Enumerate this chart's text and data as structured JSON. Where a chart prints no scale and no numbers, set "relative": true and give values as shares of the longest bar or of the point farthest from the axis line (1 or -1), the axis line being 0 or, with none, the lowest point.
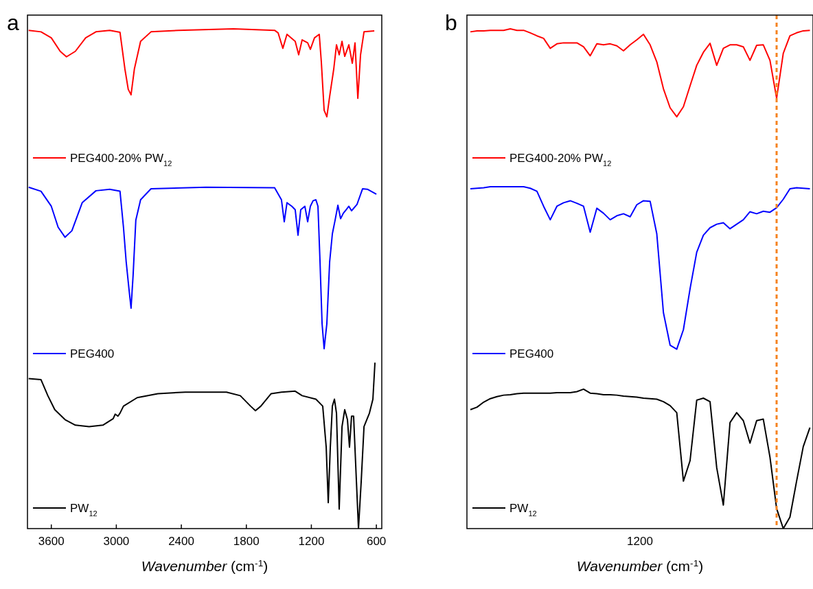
{
  "chart_data": [
    {
      "type": "line",
      "title": "a",
      "xlabel": "Wavenumber (cm$^{-1}$)",
      "relative": true,
      "xlim": [
        3820,
        550
      ],
      "xticks": [
        3600,
        3000,
        2400,
        1800,
        1200,
        600
      ],
      "legend": "left",
      "series": [
        {
          "name": "PEG400-20% PW$_{12}$",
          "color": "#ff0000",
          "x": [
            3809,
            3695,
            3600,
            3518,
            3460,
            3378,
            3283,
            3188,
            3061,
            2966,
            2921,
            2890,
            2864,
            2833,
            2776,
            2680,
            2427,
            1919,
            1539,
            1507,
            1463,
            1425,
            1349,
            1317,
            1285,
            1234,
            1209,
            1171,
            1127,
            1108,
            1082,
            1057,
            1031,
            993,
            968,
            943,
            917,
            892,
            854,
            822,
            797,
            771,
            746,
            714,
            619
          ],
          "values": [
            0.997,
            0.994,
            0.982,
            0.955,
            0.944,
            0.955,
            0.982,
            0.994,
            0.997,
            0.993,
            0.92,
            0.879,
            0.868,
            0.92,
            0.975,
            0.994,
            0.997,
            1,
            0.997,
            0.992,
            0.961,
            0.989,
            0.975,
            0.948,
            0.978,
            0.972,
            0.959,
            0.982,
            0.989,
            0.934,
            0.837,
            0.824,
            0.865,
            0.92,
            0.968,
            0.948,
            0.975,
            0.945,
            0.968,
            0.931,
            0.972,
            0.861,
            0.948,
            0.994,
            0.996
          ]
        },
        {
          "name": "PEG400",
          "color": "#0000ff",
          "x": [
            3809,
            3695,
            3600,
            3537,
            3473,
            3410,
            3315,
            3188,
            3061,
            2966,
            2934,
            2909,
            2883,
            2864,
            2845,
            2820,
            2776,
            2680,
            2173,
            1539,
            1476,
            1450,
            1425,
            1380,
            1349,
            1323,
            1298,
            1260,
            1234,
            1209,
            1184,
            1158,
            1139,
            1120,
            1101,
            1082,
            1057,
            1031,
            1006,
            981,
            955,
            930,
            905,
            879,
            854,
            829,
            778,
            727,
            683,
            600
          ],
          "values": [
            0.683,
            0.675,
            0.645,
            0.603,
            0.583,
            0.596,
            0.652,
            0.676,
            0.679,
            0.675,
            0.603,
            0.534,
            0.479,
            0.441,
            0.507,
            0.617,
            0.658,
            0.68,
            0.683,
            0.682,
            0.658,
            0.614,
            0.652,
            0.645,
            0.638,
            0.587,
            0.638,
            0.645,
            0.614,
            0.645,
            0.656,
            0.658,
            0.645,
            0.534,
            0.41,
            0.36,
            0.41,
            0.534,
            0.59,
            0.617,
            0.647,
            0.62,
            0.631,
            0.638,
            0.645,
            0.636,
            0.649,
            0.68,
            0.679,
            0.669
          ]
        },
        {
          "name": "PW$_{12}$",
          "color": "#000000",
          "x": [
            3809,
            3695,
            3632,
            3568,
            3473,
            3378,
            3251,
            3124,
            3029,
            3010,
            2985,
            2966,
            2934,
            2807,
            2617,
            2363,
            1983,
            1856,
            1761,
            1716,
            1666,
            1571,
            1476,
            1349,
            1285,
            1158,
            1095,
            1063,
            1044,
            1025,
            1006,
            987,
            968,
            943,
            917,
            892,
            867,
            848,
            829,
            810,
            784,
            765,
            740,
            714,
            664,
            632,
            613
          ],
          "values": [
            0.3,
            0.298,
            0.266,
            0.238,
            0.218,
            0.207,
            0.204,
            0.207,
            0.22,
            0.229,
            0.225,
            0.231,
            0.245,
            0.262,
            0.27,
            0.273,
            0.273,
            0.266,
            0.245,
            0.236,
            0.245,
            0.27,
            0.273,
            0.275,
            0.266,
            0.259,
            0.245,
            0.163,
            0.052,
            0.163,
            0.245,
            0.259,
            0.231,
            0.039,
            0.204,
            0.238,
            0.218,
            0.163,
            0.225,
            0.225,
            0.094,
            0,
            0.094,
            0.204,
            0.231,
            0.259,
            0.332
          ]
        }
      ]
    },
    {
      "type": "line",
      "title": "b",
      "xlabel": "Wavenumber (cm$^{-1}$)",
      "relative": true,
      "legend": "left",
      "annotations": [
        "1200"
      ],
      "categories": [
        null,
        null,
        null,
        null,
        null,
        null,
        null,
        null,
        null,
        null,
        null,
        null,
        null,
        null,
        null,
        null,
        null,
        null,
        null,
        null,
        null,
        null,
        null,
        null,
        null,
        null,
        null,
        null,
        null,
        null,
        null,
        null,
        null,
        null,
        null,
        null,
        null,
        null,
        null,
        null,
        null,
        null,
        null,
        null,
        null,
        null,
        null,
        null,
        null,
        null,
        null,
        null
      ],
      "series": [
        {
          "name": "PEG400-20% PW$_{12}$",
          "color": "#ff0000",
          "values": [
            0.994,
            0.996,
            0.996,
            0.997,
            0.997,
            0.997,
            1,
            0.997,
            0.997,
            0.992,
            0.986,
            0.981,
            0.961,
            0.97,
            0.972,
            0.972,
            0.972,
            0.964,
            0.946,
            0.97,
            0.968,
            0.97,
            0.966,
            0.956,
            0.968,
            0.978,
            0.989,
            0.968,
            0.934,
            0.88,
            0.842,
            0.824,
            0.844,
            0.886,
            0.927,
            0.953,
            0.971,
            0.927,
            0.961,
            0.968,
            0.968,
            0.964,
            0.937,
            0.967,
            0.968,
            0.937,
            0.861,
            0.951,
            0.986,
            0.992,
            0.996,
            0.997
          ]
        },
        {
          "name": "PEG400",
          "color": "#0000ff",
          "values": [
            0.68,
            0.681,
            0.682,
            0.684,
            0.684,
            0.684,
            0.684,
            0.684,
            0.684,
            0.681,
            0.675,
            0.645,
            0.618,
            0.645,
            0.652,
            0.656,
            0.651,
            0.645,
            0.593,
            0.641,
            0.631,
            0.618,
            0.626,
            0.63,
            0.624,
            0.648,
            0.656,
            0.655,
            0.59,
            0.432,
            0.367,
            0.359,
            0.398,
            0.48,
            0.553,
            0.587,
            0.602,
            0.609,
            0.612,
            0.6,
            0.609,
            0.618,
            0.634,
            0.63,
            0.635,
            0.633,
            0.642,
            0.659,
            0.68,
            0.682,
            0.681,
            0.68
          ]
        },
        {
          "name": "PW$_{12}$",
          "color": "#000000",
          "values": [
            0.238,
            0.243,
            0.253,
            0.26,
            0.264,
            0.267,
            0.268,
            0.27,
            0.271,
            0.271,
            0.271,
            0.271,
            0.271,
            0.272,
            0.272,
            0.272,
            0.274,
            0.279,
            0.271,
            0.27,
            0.268,
            0.268,
            0.267,
            0.265,
            0.264,
            0.263,
            0.261,
            0.26,
            0.259,
            0.254,
            0.246,
            0.232,
            0.095,
            0.136,
            0.257,
            0.261,
            0.254,
            0.122,
            0.047,
            0.212,
            0.232,
            0.216,
            0.171,
            0.216,
            0.219,
            0.143,
            0.04,
            0,
            0.023,
            0.095,
            0.164,
            0.202
          ]
        }
      ]
    }
  ]
}
